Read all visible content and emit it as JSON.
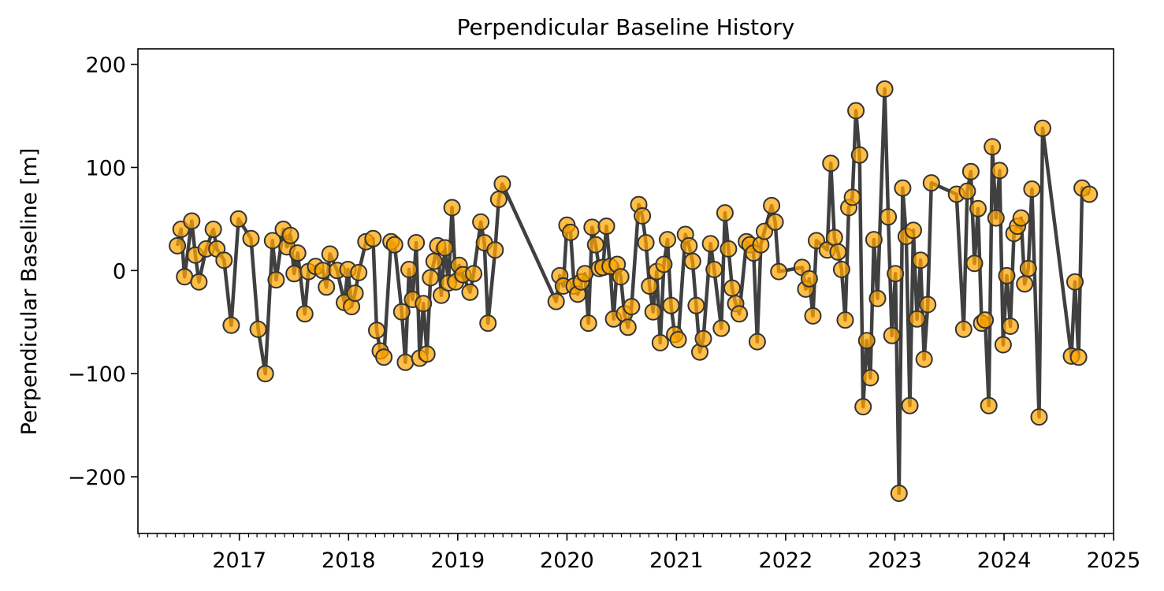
{
  "chart_data": {
    "type": "scatter",
    "title": "Perpendicular Baseline History",
    "xlabel": "",
    "ylabel": "Perpendicular Baseline [m]",
    "x_axis_type": "date",
    "xlim": [
      "2016-01-28",
      "2025-01-01"
    ],
    "ylim": [
      -255,
      215
    ],
    "x_tick_labels": [
      "2017",
      "2018",
      "2019",
      "2020",
      "2021",
      "2022",
      "2023",
      "2024",
      "2025"
    ],
    "y_ticks": [
      200,
      100,
      0,
      -100,
      -200
    ],
    "y_tick_labels": [
      "200",
      "100",
      "0",
      "−100",
      "−200"
    ],
    "x_minor_ticks": "monthly",
    "grid": false,
    "legend": "none",
    "series": [
      {
        "line_color": "#404040",
        "marker_face_color": "#ffa500",
        "marker_edge_color": "#333333",
        "line_style": "solid",
        "marker": "circle",
        "points": [
          [
            "2016-06-08",
            24
          ],
          [
            "2016-06-20",
            40
          ],
          [
            "2016-07-02",
            -6
          ],
          [
            "2016-07-26",
            48
          ],
          [
            "2016-08-07",
            15
          ],
          [
            "2016-08-19",
            -11
          ],
          [
            "2016-09-12",
            21
          ],
          [
            "2016-10-06",
            40
          ],
          [
            "2016-10-18",
            21
          ],
          [
            "2016-11-11",
            10
          ],
          [
            "2016-12-05",
            -53
          ],
          [
            "2016-12-29",
            50
          ],
          [
            "2017-02-09",
            31
          ],
          [
            "2017-03-05",
            -57
          ],
          [
            "2017-03-29",
            -100
          ],
          [
            "2017-04-22",
            29
          ],
          [
            "2017-05-04",
            -9
          ],
          [
            "2017-05-28",
            40
          ],
          [
            "2017-06-09",
            23
          ],
          [
            "2017-06-21",
            34
          ],
          [
            "2017-07-03",
            -3
          ],
          [
            "2017-07-15",
            17
          ],
          [
            "2017-08-08",
            -42
          ],
          [
            "2017-08-20",
            -1
          ],
          [
            "2017-09-13",
            4
          ],
          [
            "2017-10-07",
            0
          ],
          [
            "2017-10-19",
            -16
          ],
          [
            "2017-10-31",
            16
          ],
          [
            "2017-11-24",
            0
          ],
          [
            "2017-12-18",
            -31
          ],
          [
            "2017-12-30",
            1
          ],
          [
            "2018-01-11",
            -35
          ],
          [
            "2018-01-23",
            -22
          ],
          [
            "2018-02-04",
            -2
          ],
          [
            "2018-02-28",
            28
          ],
          [
            "2018-03-24",
            31
          ],
          [
            "2018-04-05",
            -58
          ],
          [
            "2018-04-17",
            -78
          ],
          [
            "2018-04-29",
            -84
          ],
          [
            "2018-05-23",
            28
          ],
          [
            "2018-06-04",
            25
          ],
          [
            "2018-06-28",
            -40
          ],
          [
            "2018-07-10",
            -89
          ],
          [
            "2018-07-22",
            1
          ],
          [
            "2018-08-03",
            -28
          ],
          [
            "2018-08-15",
            27
          ],
          [
            "2018-08-27",
            -85
          ],
          [
            "2018-09-08",
            -32
          ],
          [
            "2018-09-20",
            -81
          ],
          [
            "2018-10-02",
            -7
          ],
          [
            "2018-10-14",
            9
          ],
          [
            "2018-10-26",
            24
          ],
          [
            "2018-11-07",
            -24
          ],
          [
            "2018-11-19",
            22
          ],
          [
            "2018-12-01",
            -12
          ],
          [
            "2018-12-13",
            61
          ],
          [
            "2018-12-25",
            -11
          ],
          [
            "2019-01-06",
            5
          ],
          [
            "2019-01-18",
            -4
          ],
          [
            "2019-02-11",
            -21
          ],
          [
            "2019-02-23",
            -3
          ],
          [
            "2019-03-19",
            47
          ],
          [
            "2019-03-31",
            27
          ],
          [
            "2019-04-12",
            -51
          ],
          [
            "2019-05-06",
            20
          ],
          [
            "2019-05-18",
            69
          ],
          [
            "2019-05-30",
            84
          ],
          [
            "2019-11-26",
            -30
          ],
          [
            "2019-12-08",
            -5
          ],
          [
            "2019-12-20",
            -15
          ],
          [
            "2020-01-01",
            44
          ],
          [
            "2020-01-13",
            37
          ],
          [
            "2020-01-25",
            -15
          ],
          [
            "2020-02-06",
            -23
          ],
          [
            "2020-02-18",
            -11
          ],
          [
            "2020-03-01",
            -3
          ],
          [
            "2020-03-13",
            -51
          ],
          [
            "2020-03-25",
            42
          ],
          [
            "2020-04-06",
            25
          ],
          [
            "2020-04-18",
            2
          ],
          [
            "2020-04-30",
            3
          ],
          [
            "2020-05-12",
            43
          ],
          [
            "2020-05-24",
            4
          ],
          [
            "2020-06-05",
            -47
          ],
          [
            "2020-06-17",
            6
          ],
          [
            "2020-06-29",
            -6
          ],
          [
            "2020-07-11",
            -42
          ],
          [
            "2020-07-23",
            -55
          ],
          [
            "2020-08-04",
            -35
          ],
          [
            "2020-08-28",
            64
          ],
          [
            "2020-09-09",
            53
          ],
          [
            "2020-09-21",
            27
          ],
          [
            "2020-10-03",
            -15
          ],
          [
            "2020-10-15",
            -40
          ],
          [
            "2020-10-27",
            -1
          ],
          [
            "2020-11-08",
            -70
          ],
          [
            "2020-11-20",
            6
          ],
          [
            "2020-12-02",
            30
          ],
          [
            "2020-12-14",
            -34
          ],
          [
            "2020-12-26",
            -62
          ],
          [
            "2021-01-07",
            -67
          ],
          [
            "2021-01-31",
            35
          ],
          [
            "2021-02-12",
            24
          ],
          [
            "2021-02-24",
            9
          ],
          [
            "2021-03-08",
            -34
          ],
          [
            "2021-03-20",
            -79
          ],
          [
            "2021-04-01",
            -66
          ],
          [
            "2021-04-25",
            26
          ],
          [
            "2021-05-07",
            1
          ],
          [
            "2021-05-31",
            -56
          ],
          [
            "2021-06-12",
            56
          ],
          [
            "2021-06-24",
            21
          ],
          [
            "2021-07-06",
            -17
          ],
          [
            "2021-07-18",
            -32
          ],
          [
            "2021-07-30",
            -42
          ],
          [
            "2021-08-23",
            28
          ],
          [
            "2021-09-04",
            25
          ],
          [
            "2021-09-16",
            17
          ],
          [
            "2021-09-28",
            -69
          ],
          [
            "2021-10-10",
            25
          ],
          [
            "2021-10-22",
            38
          ],
          [
            "2021-11-15",
            63
          ],
          [
            "2021-11-27",
            47
          ],
          [
            "2021-12-09",
            -1
          ],
          [
            "2022-02-25",
            3
          ],
          [
            "2022-03-09",
            -18
          ],
          [
            "2022-03-21",
            -8
          ],
          [
            "2022-04-02",
            -44
          ],
          [
            "2022-04-14",
            29
          ],
          [
            "2022-05-20",
            20
          ],
          [
            "2022-06-01",
            104
          ],
          [
            "2022-06-13",
            32
          ],
          [
            "2022-06-25",
            18
          ],
          [
            "2022-07-07",
            1
          ],
          [
            "2022-07-19",
            -48
          ],
          [
            "2022-07-31",
            61
          ],
          [
            "2022-08-12",
            71
          ],
          [
            "2022-08-24",
            155
          ],
          [
            "2022-09-05",
            112
          ],
          [
            "2022-09-17",
            -132
          ],
          [
            "2022-09-29",
            -68
          ],
          [
            "2022-10-11",
            -104
          ],
          [
            "2022-10-23",
            30
          ],
          [
            "2022-11-04",
            -27
          ],
          [
            "2022-11-28",
            176
          ],
          [
            "2022-12-10",
            52
          ],
          [
            "2022-12-22",
            -63
          ],
          [
            "2023-01-03",
            -3
          ],
          [
            "2023-01-15",
            -216
          ],
          [
            "2023-01-27",
            80
          ],
          [
            "2023-02-08",
            33
          ],
          [
            "2023-02-20",
            -131
          ],
          [
            "2023-03-04",
            39
          ],
          [
            "2023-03-16",
            -47
          ],
          [
            "2023-03-28",
            10
          ],
          [
            "2023-04-09",
            -86
          ],
          [
            "2023-04-21",
            -33
          ],
          [
            "2023-05-03",
            85
          ],
          [
            "2023-07-26",
            74
          ],
          [
            "2023-08-19",
            -57
          ],
          [
            "2023-08-31",
            77
          ],
          [
            "2023-09-12",
            96
          ],
          [
            "2023-09-24",
            7
          ],
          [
            "2023-10-06",
            60
          ],
          [
            "2023-10-18",
            -51
          ],
          [
            "2023-10-30",
            -48
          ],
          [
            "2023-11-11",
            -131
          ],
          [
            "2023-11-23",
            120
          ],
          [
            "2023-12-05",
            51
          ],
          [
            "2023-12-17",
            97
          ],
          [
            "2023-12-29",
            -72
          ],
          [
            "2024-01-10",
            -5
          ],
          [
            "2024-01-22",
            -54
          ],
          [
            "2024-02-03",
            36
          ],
          [
            "2024-02-15",
            43
          ],
          [
            "2024-02-27",
            51
          ],
          [
            "2024-03-10",
            -13
          ],
          [
            "2024-03-22",
            2
          ],
          [
            "2024-04-03",
            79
          ],
          [
            "2024-04-27",
            -142
          ],
          [
            "2024-05-09",
            138
          ],
          [
            "2024-08-13",
            -83
          ],
          [
            "2024-08-25",
            -11
          ],
          [
            "2024-09-06",
            -84
          ],
          [
            "2024-09-18",
            80
          ],
          [
            "2024-10-12",
            74
          ]
        ]
      }
    ]
  }
}
